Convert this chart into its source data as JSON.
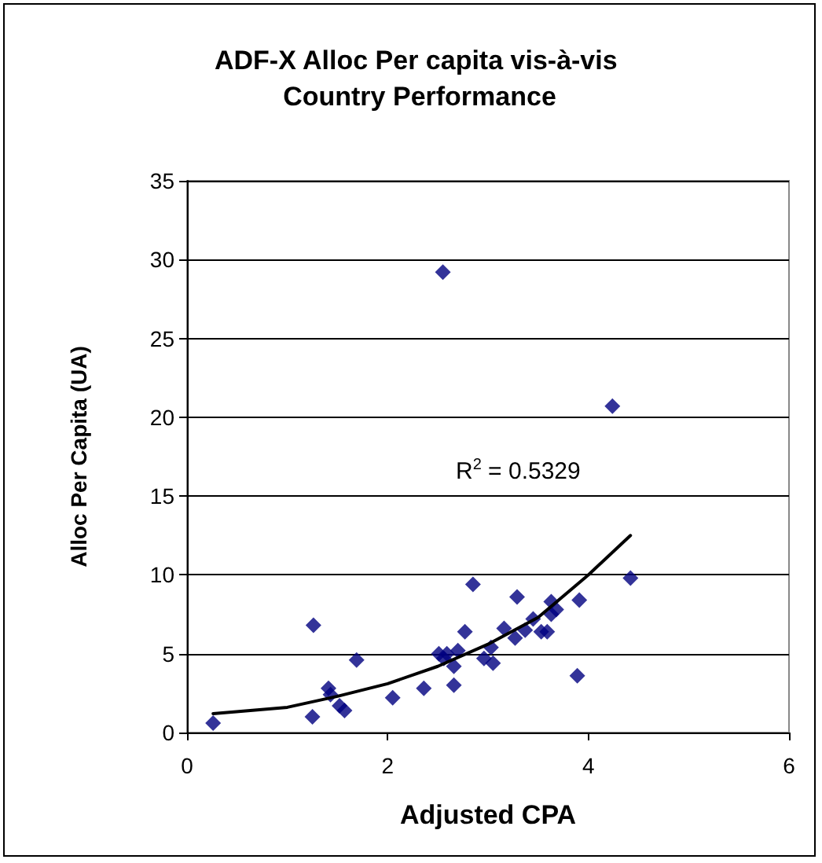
{
  "chart_data": {
    "type": "scatter",
    "title": "ADF-X Alloc Per capita vis-à-vis Country Performance",
    "xlabel": "Adjusted CPA",
    "ylabel": "Alloc Per Capita (UA)",
    "annotations": [
      "R$^{2}$ = 0.5329"
    ],
    "xlim": [
      0,
      6
    ],
    "xticks": [
      0,
      2,
      4,
      6
    ],
    "ylim": [
      0,
      35
    ],
    "yticks": [
      0,
      5,
      10,
      15,
      20,
      25,
      30,
      35
    ],
    "grid": "y",
    "marker": "diamond",
    "series": [
      {
        "color": "#000080",
        "x": [
          0.26,
          1.25,
          1.26,
          1.41,
          1.43,
          1.52,
          1.57,
          1.69,
          2.05,
          2.36,
          2.55,
          2.51,
          2.56,
          2.59,
          2.66,
          2.66,
          2.7,
          2.77,
          2.85,
          2.96,
          3.03,
          3.05,
          3.16,
          3.27,
          3.29,
          3.37,
          3.45,
          3.53,
          3.59,
          3.63,
          3.63,
          3.68,
          3.89,
          3.91,
          4.24,
          4.42
        ],
        "values": [
          0.6,
          1,
          6.8,
          2.8,
          2.4,
          1.7,
          1.4,
          4.6,
          2.2,
          2.8,
          29.2,
          5,
          4.7,
          5,
          4.2,
          3,
          5.2,
          6.4,
          9.4,
          4.7,
          5.4,
          4.4,
          6.6,
          6,
          8.6,
          6.5,
          7.2,
          6.4,
          6.4,
          8.3,
          7.5,
          7.8,
          3.6,
          8.4,
          20.7,
          9.8
        ]
      },
      {
        "type": "line",
        "color": "#000000",
        "marker": "none",
        "line_style": "solid",
        "x": [
          0.26,
          1,
          1.5,
          2,
          2.5,
          3,
          3.5,
          4,
          4.42
        ],
        "values": [
          1.2,
          1.6,
          2.3,
          3.1,
          4.2,
          5.6,
          7.3,
          10,
          12.5
        ]
      }
    ]
  }
}
